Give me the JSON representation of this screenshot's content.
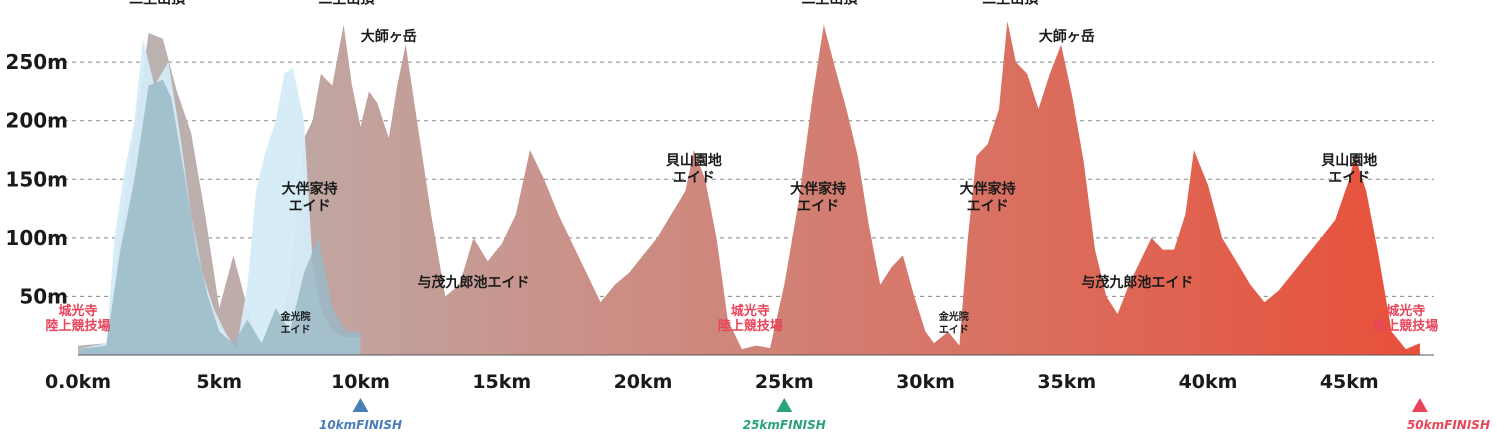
{
  "chart_data": {
    "type": "area",
    "title": "",
    "xlabel": "",
    "ylabel": "",
    "xlim": [
      0,
      48
    ],
    "ylim": [
      0,
      280
    ],
    "y_ticks": [
      {
        "value": 50,
        "label": "50m"
      },
      {
        "value": 100,
        "label": "100m"
      },
      {
        "value": 150,
        "label": "150m"
      },
      {
        "value": 200,
        "label": "200m"
      },
      {
        "value": 250,
        "label": "250m"
      }
    ],
    "x_ticks": [
      {
        "value": 0,
        "label": "0.0km"
      },
      {
        "value": 5,
        "label": "5km"
      },
      {
        "value": 10,
        "label": "10km"
      },
      {
        "value": 15,
        "label": "15km"
      },
      {
        "value": 20,
        "label": "20km"
      },
      {
        "value": 25,
        "label": "25km"
      },
      {
        "value": 30,
        "label": "30km"
      },
      {
        "value": 35,
        "label": "35km"
      },
      {
        "value": 40,
        "label": "40km"
      },
      {
        "value": 45,
        "label": "45km"
      }
    ],
    "grid": true,
    "series": [
      {
        "name": "",
        "color_start": "#b8b8b8",
        "color_end": "#e8503a",
        "points": [
          [
            0,
            8
          ],
          [
            1.0,
            10
          ],
          [
            1.6,
            120
          ],
          [
            2.0,
            190
          ],
          [
            2.5,
            275
          ],
          [
            3.0,
            270
          ],
          [
            3.5,
            225
          ],
          [
            4.0,
            190
          ],
          [
            4.5,
            120
          ],
          [
            5.0,
            40
          ],
          [
            5.5,
            85
          ],
          [
            6.0,
            40
          ],
          [
            6.5,
            5
          ],
          [
            7.0,
            15
          ],
          [
            7.5,
            60
          ],
          [
            8.0,
            185
          ],
          [
            8.3,
            200
          ],
          [
            8.6,
            240
          ],
          [
            9.0,
            230
          ],
          [
            9.4,
            282
          ],
          [
            9.7,
            230
          ],
          [
            10.0,
            195
          ],
          [
            10.3,
            225
          ],
          [
            10.6,
            215
          ],
          [
            11.0,
            185
          ],
          [
            11.3,
            230
          ],
          [
            11.6,
            265
          ],
          [
            12.0,
            200
          ],
          [
            12.5,
            120
          ],
          [
            13.0,
            50
          ],
          [
            13.5,
            60
          ],
          [
            14.0,
            100
          ],
          [
            14.5,
            80
          ],
          [
            15.0,
            95
          ],
          [
            15.5,
            120
          ],
          [
            16.0,
            175
          ],
          [
            16.5,
            150
          ],
          [
            17.0,
            120
          ],
          [
            17.5,
            95
          ],
          [
            18.0,
            70
          ],
          [
            18.5,
            45
          ],
          [
            19.0,
            60
          ],
          [
            19.5,
            70
          ],
          [
            20.0,
            85
          ],
          [
            20.5,
            100
          ],
          [
            21.0,
            120
          ],
          [
            21.5,
            140
          ],
          [
            21.8,
            175
          ],
          [
            22.2,
            150
          ],
          [
            22.6,
            100
          ],
          [
            23.0,
            30
          ],
          [
            23.5,
            5
          ],
          [
            24.0,
            8
          ],
          [
            24.5,
            6
          ],
          [
            25.0,
            60
          ],
          [
            25.5,
            130
          ],
          [
            26.0,
            220
          ],
          [
            26.4,
            282
          ],
          [
            26.8,
            245
          ],
          [
            27.2,
            210
          ],
          [
            27.6,
            170
          ],
          [
            28.0,
            110
          ],
          [
            28.4,
            60
          ],
          [
            28.8,
            75
          ],
          [
            29.2,
            85
          ],
          [
            29.6,
            50
          ],
          [
            30.0,
            20
          ],
          [
            30.3,
            10
          ],
          [
            30.8,
            20
          ],
          [
            31.2,
            8
          ],
          [
            31.5,
            100
          ],
          [
            31.8,
            170
          ],
          [
            32.2,
            180
          ],
          [
            32.6,
            210
          ],
          [
            32.9,
            285
          ],
          [
            33.2,
            250
          ],
          [
            33.6,
            240
          ],
          [
            34.0,
            210
          ],
          [
            34.4,
            240
          ],
          [
            34.8,
            265
          ],
          [
            35.2,
            220
          ],
          [
            35.6,
            165
          ],
          [
            36.0,
            90
          ],
          [
            36.4,
            50
          ],
          [
            36.8,
            35
          ],
          [
            37.2,
            60
          ],
          [
            37.6,
            80
          ],
          [
            38.0,
            100
          ],
          [
            38.4,
            90
          ],
          [
            38.8,
            90
          ],
          [
            39.2,
            120
          ],
          [
            39.5,
            175
          ],
          [
            40.0,
            145
          ],
          [
            40.5,
            100
          ],
          [
            41.0,
            80
          ],
          [
            41.5,
            60
          ],
          [
            42.0,
            45
          ],
          [
            42.5,
            55
          ],
          [
            43.0,
            70
          ],
          [
            43.5,
            85
          ],
          [
            44.0,
            100
          ],
          [
            44.5,
            115
          ],
          [
            45.0,
            150
          ],
          [
            45.2,
            170
          ],
          [
            45.6,
            140
          ],
          [
            46.0,
            90
          ],
          [
            46.5,
            20
          ],
          [
            47.0,
            5
          ],
          [
            47.5,
            10
          ]
        ]
      },
      {
        "name": "",
        "color": "#d4ebf7",
        "points": [
          [
            0,
            5
          ],
          [
            1.0,
            10
          ],
          [
            1.3,
            100
          ],
          [
            1.6,
            150
          ],
          [
            2.0,
            200
          ],
          [
            2.3,
            270
          ],
          [
            2.7,
            230
          ],
          [
            3.2,
            250
          ],
          [
            3.6,
            190
          ],
          [
            4.0,
            120
          ],
          [
            4.4,
            70
          ],
          [
            4.8,
            40
          ],
          [
            5.2,
            20
          ],
          [
            5.6,
            5
          ],
          [
            6.0,
            60
          ],
          [
            6.3,
            140
          ],
          [
            6.6,
            170
          ],
          [
            7.0,
            200
          ],
          [
            7.3,
            240
          ],
          [
            7.6,
            245
          ],
          [
            8.0,
            200
          ],
          [
            8.3,
            80
          ],
          [
            8.6,
            40
          ],
          [
            9.0,
            20
          ],
          [
            9.5,
            15
          ],
          [
            10.0,
            15
          ]
        ]
      },
      {
        "name": "",
        "color": "#9ab8c6",
        "points": [
          [
            0,
            5
          ],
          [
            1.0,
            8
          ],
          [
            1.5,
            90
          ],
          [
            2.0,
            150
          ],
          [
            2.5,
            230
          ],
          [
            3.0,
            235
          ],
          [
            3.3,
            220
          ],
          [
            3.8,
            150
          ],
          [
            4.2,
            90
          ],
          [
            4.6,
            50
          ],
          [
            5.0,
            20
          ],
          [
            5.5,
            10
          ],
          [
            6.0,
            30
          ],
          [
            6.5,
            10
          ],
          [
            7.0,
            40
          ],
          [
            7.5,
            20
          ],
          [
            8.0,
            70
          ],
          [
            8.5,
            100
          ],
          [
            9.0,
            40
          ],
          [
            9.5,
            20
          ],
          [
            10.0,
            20
          ]
        ]
      }
    ],
    "annotations": [
      {
        "x": 2.8,
        "y": 300,
        "lines": [
          "二上山頂"
        ],
        "style": "dark"
      },
      {
        "x": 9.5,
        "y": 300,
        "lines": [
          "二上山頂"
        ],
        "style": "dark"
      },
      {
        "x": 26.6,
        "y": 300,
        "lines": [
          "二上山頂"
        ],
        "style": "dark"
      },
      {
        "x": 33.0,
        "y": 300,
        "lines": [
          "二上山頂"
        ],
        "style": "dark"
      },
      {
        "x": 11.0,
        "y": 268,
        "lines": [
          "大師ヶ岳"
        ],
        "style": "dark"
      },
      {
        "x": 35.0,
        "y": 268,
        "lines": [
          "大師ヶ岳"
        ],
        "style": "dark"
      },
      {
        "x": 8.2,
        "y": 138,
        "lines": [
          "大伴家持",
          "エイド"
        ],
        "style": "dark"
      },
      {
        "x": 26.2,
        "y": 138,
        "lines": [
          "大伴家持",
          "エイド"
        ],
        "style": "dark"
      },
      {
        "x": 32.2,
        "y": 138,
        "lines": [
          "大伴家持",
          "エイド"
        ],
        "style": "dark"
      },
      {
        "x": 21.8,
        "y": 162,
        "lines": [
          "貝山園地",
          "エイド"
        ],
        "style": "dark"
      },
      {
        "x": 45.0,
        "y": 162,
        "lines": [
          "貝山園地",
          "エイド"
        ],
        "style": "dark"
      },
      {
        "x": 14.0,
        "y": 58,
        "lines": [
          "与茂九郎池エイド"
        ],
        "style": "dark"
      },
      {
        "x": 37.5,
        "y": 58,
        "lines": [
          "与茂九郎池エイド"
        ],
        "style": "dark"
      },
      {
        "x": 7.7,
        "y": 30,
        "lines": [
          "金光院",
          "エイド"
        ],
        "style": "small"
      },
      {
        "x": 31.0,
        "y": 30,
        "lines": [
          "金光院",
          "エイド"
        ],
        "style": "small"
      },
      {
        "x": 0.0,
        "y": 34,
        "lines": [
          "城光寺",
          "陸上競技場"
        ],
        "style": "red"
      },
      {
        "x": 23.8,
        "y": 34,
        "lines": [
          "城光寺",
          "陸上競技場"
        ],
        "style": "red"
      },
      {
        "x": 47.0,
        "y": 34,
        "lines": [
          "城光寺",
          "陸上競技場"
        ],
        "style": "red"
      }
    ],
    "finish_markers": [
      {
        "x": 10,
        "label": "10kmFINISH",
        "color": "#4a7db8"
      },
      {
        "x": 25,
        "label": "25kmFINISH",
        "color": "#2aa37a"
      },
      {
        "x": 47.5,
        "label": "50kmFINISH",
        "color": "#e8455a"
      }
    ]
  }
}
